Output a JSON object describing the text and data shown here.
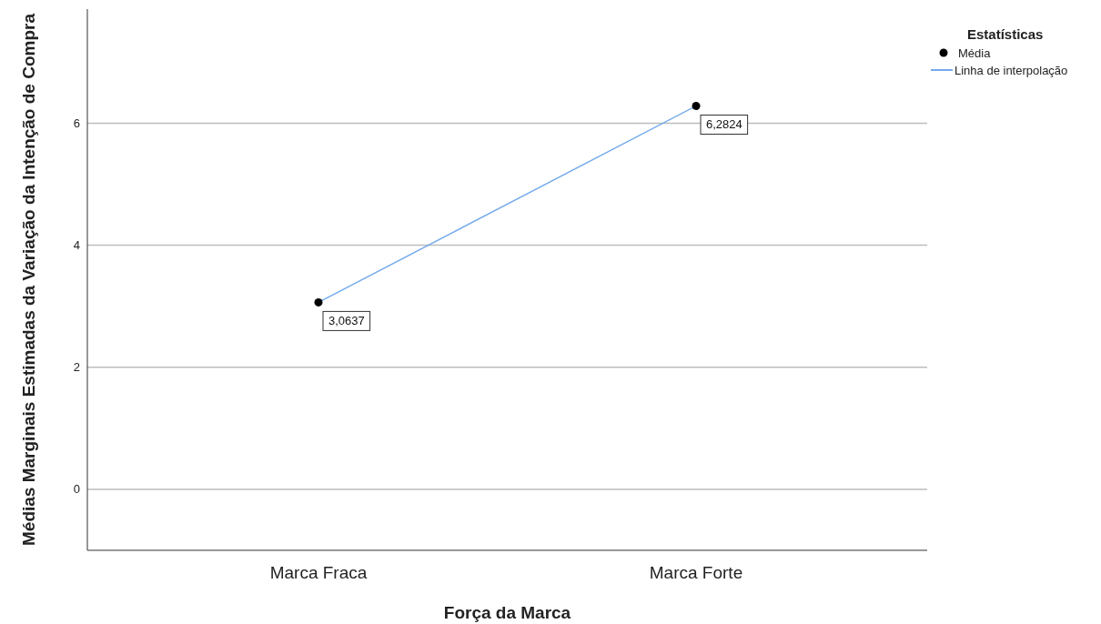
{
  "chart_data": {
    "type": "line",
    "xlabel": "Força da Marca",
    "ylabel": "Médias Marginais Estimadas da Variação da Intenção de Compra",
    "legend_title": "Estatísticas",
    "categories": [
      "Marca Fraca",
      "Marca Forte"
    ],
    "series": [
      {
        "name": "Média",
        "type": "scatter",
        "color": "#000000",
        "values": [
          3.0637,
          6.2824
        ],
        "value_labels": [
          "3,0637",
          "6,2824"
        ],
        "marker": "circle"
      },
      {
        "name": "Linha de interpolação",
        "color": "#74aaeb",
        "values": [
          3.0637,
          6.2824
        ]
      }
    ],
    "ylim": [
      -1,
      7.87
    ],
    "yticks": [
      0,
      2,
      4,
      6
    ],
    "grid": "y",
    "legend": "top right"
  }
}
